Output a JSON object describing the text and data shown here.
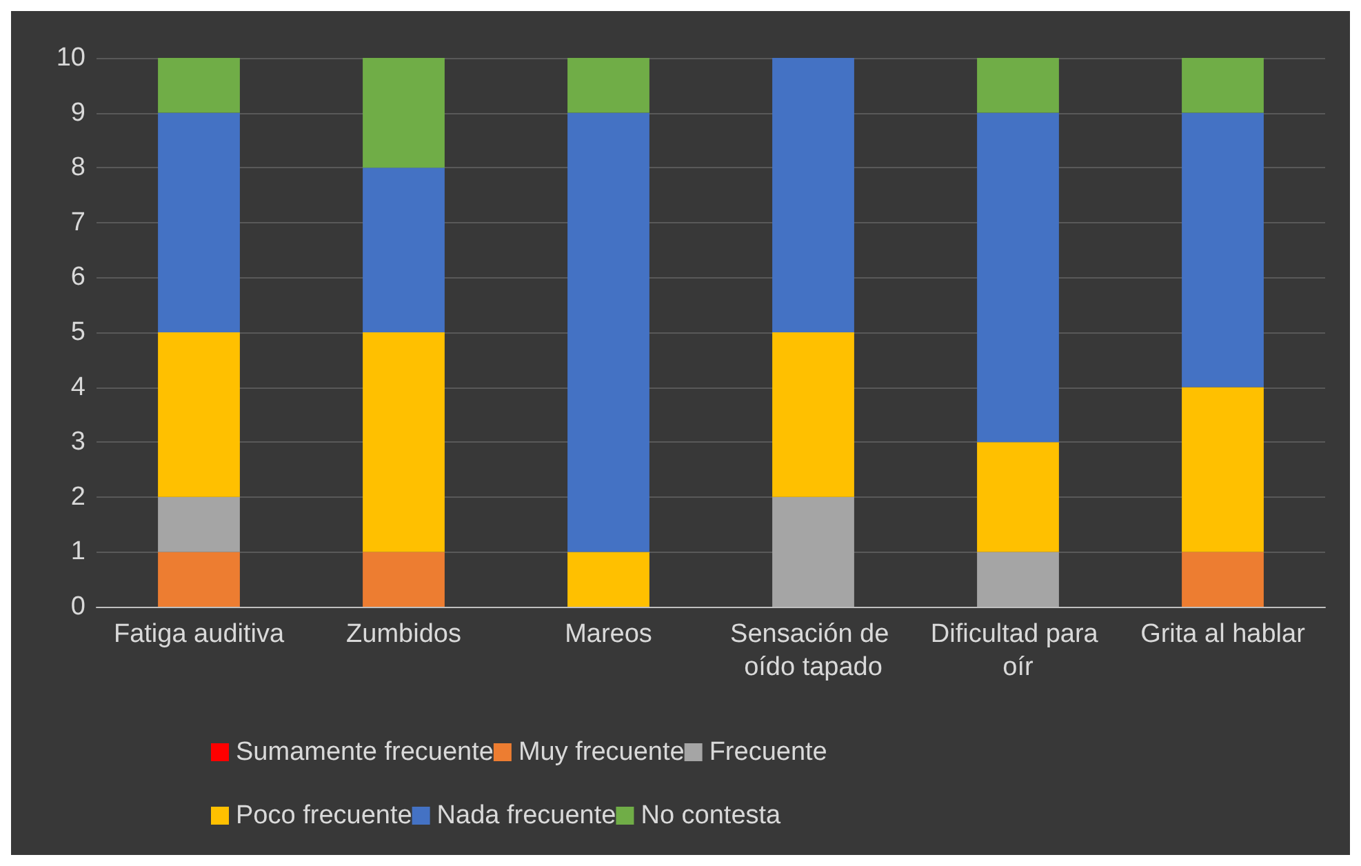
{
  "chart_data": {
    "type": "bar",
    "stacked": true,
    "categories": [
      "Fatiga auditiva",
      "Zumbidos",
      "Mareos",
      "Sensación de oído tapado",
      "Dificultad para oír",
      "Grita al hablar"
    ],
    "series": [
      {
        "name": "Sumamente frecuente",
        "color": "#ff0000",
        "values": [
          0,
          0,
          0,
          0,
          0,
          0
        ]
      },
      {
        "name": "Muy frecuente",
        "color": "#ed7d31",
        "values": [
          1,
          1,
          0,
          0,
          0,
          1
        ]
      },
      {
        "name": "Frecuente",
        "color": "#a5a5a5",
        "values": [
          1,
          0,
          0,
          2,
          1,
          0
        ]
      },
      {
        "name": "Poco frecuente",
        "color": "#ffc000",
        "values": [
          3,
          4,
          1,
          3,
          2,
          3
        ]
      },
      {
        "name": "Nada frecuente",
        "color": "#4472c4",
        "values": [
          4,
          3,
          8,
          5,
          6,
          5
        ]
      },
      {
        "name": "No contesta",
        "color": "#70ad47",
        "values": [
          1,
          2,
          1,
          0,
          1,
          1
        ]
      }
    ],
    "ylim": [
      0,
      10
    ],
    "yticks": [
      0,
      1,
      2,
      3,
      4,
      5,
      6,
      7,
      8,
      9,
      10
    ],
    "grid": "y",
    "legend": "bottom"
  }
}
